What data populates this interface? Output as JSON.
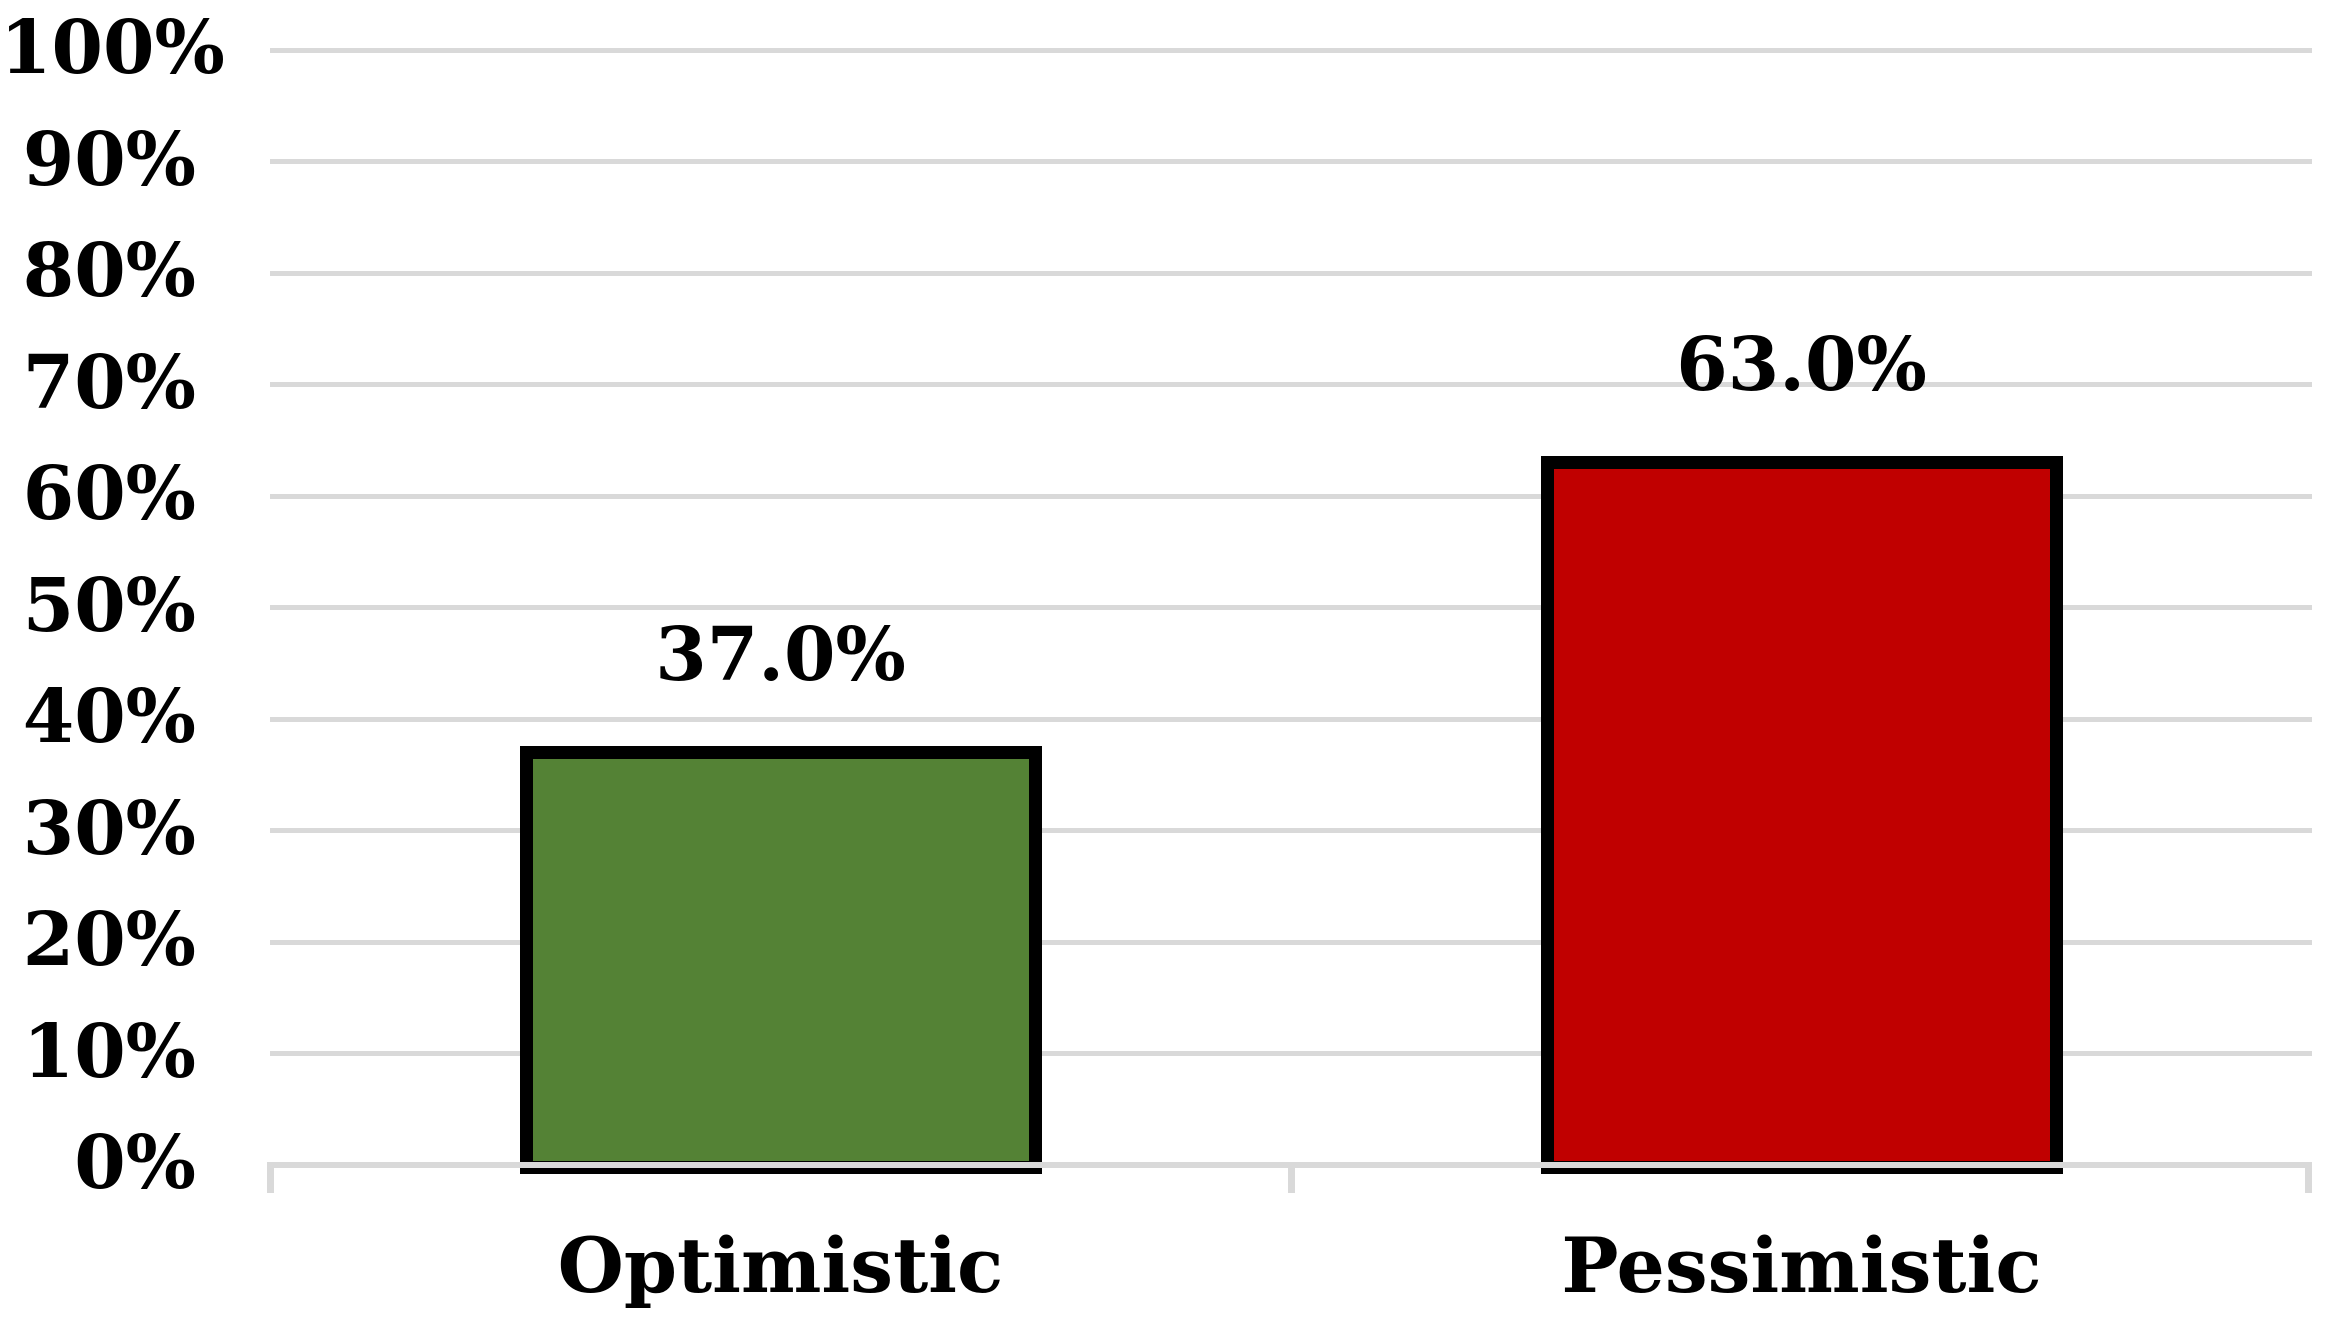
{
  "chart_data": {
    "type": "bar",
    "title": "",
    "xlabel": "",
    "ylabel": "",
    "categories": [
      "Optimistic",
      "Pessimistic"
    ],
    "values": [
      37.0,
      63.0
    ],
    "data_labels": [
      "37.0%",
      "63.0%"
    ],
    "bar_colors": [
      "#548235",
      "#C00000"
    ],
    "bar_border_color": "#000000",
    "ylim": [
      0,
      100
    ],
    "y_ticks": [
      0,
      10,
      20,
      30,
      40,
      50,
      60,
      70,
      80,
      90,
      100
    ],
    "y_tick_labels": [
      "0%",
      "10%",
      "20%",
      "30%",
      "40%",
      "50%",
      "60%",
      "70%",
      "80%",
      "90%",
      "100%"
    ],
    "grid": true,
    "gridline_color": "#D9D9D9",
    "axis_color": "#D9D9D9",
    "text_color": "#000000",
    "legend_position": "none",
    "background_color": "#FFFFFF"
  }
}
